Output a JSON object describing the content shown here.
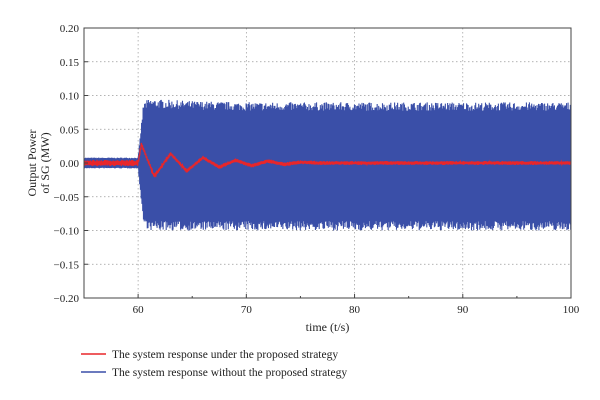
{
  "chart_data": {
    "type": "line",
    "title": "",
    "xlabel": "time (t/s)",
    "ylabel_lines": [
      "Output Power",
      "of SG (MW)"
    ],
    "xlim": [
      55,
      100
    ],
    "ylim": [
      -0.2,
      0.2
    ],
    "x_ticks": [
      60,
      70,
      80,
      90,
      100
    ],
    "y_ticks": [
      -0.2,
      -0.15,
      -0.1,
      -0.05,
      0.0,
      0.05,
      0.1,
      0.15,
      0.2
    ],
    "x_tick_labels": [
      "60",
      "70",
      "80",
      "90",
      "100"
    ],
    "y_tick_labels": [
      "−0.20",
      "−0.15",
      "−0.10",
      "−0.05",
      "0.00",
      "0.05",
      "0.10",
      "0.15",
      "0.20"
    ],
    "grid": true,
    "legend_position": "bottom-left",
    "series": [
      {
        "name": "The system response without the proposed strategy",
        "color": "#3a4fa8",
        "style": "high-frequency oscillation band",
        "x": [
          55,
          60,
          60.5,
          61,
          65,
          70,
          80,
          90,
          100
        ],
        "y_upper": [
          0.008,
          0.008,
          0.09,
          0.095,
          0.092,
          0.09,
          0.09,
          0.09,
          0.09
        ],
        "y_lower": [
          -0.008,
          -0.008,
          -0.09,
          -0.1,
          -0.1,
          -0.1,
          -0.1,
          -0.1,
          -0.1
        ]
      },
      {
        "name": "The system response under the proposed strategy",
        "color": "#e8262a",
        "style": "damped oscillation",
        "x": [
          55,
          60,
          60.3,
          61.5,
          63,
          64.5,
          66,
          67.5,
          69,
          70.5,
          72,
          73.5,
          75,
          77,
          80,
          85,
          90,
          100
        ],
        "y": [
          0.0,
          0.0,
          0.028,
          -0.02,
          0.014,
          -0.012,
          0.008,
          -0.006,
          0.004,
          -0.004,
          0.003,
          -0.002,
          0.001,
          0.0,
          0.0,
          0.0,
          0.0,
          0.0
        ]
      }
    ]
  }
}
